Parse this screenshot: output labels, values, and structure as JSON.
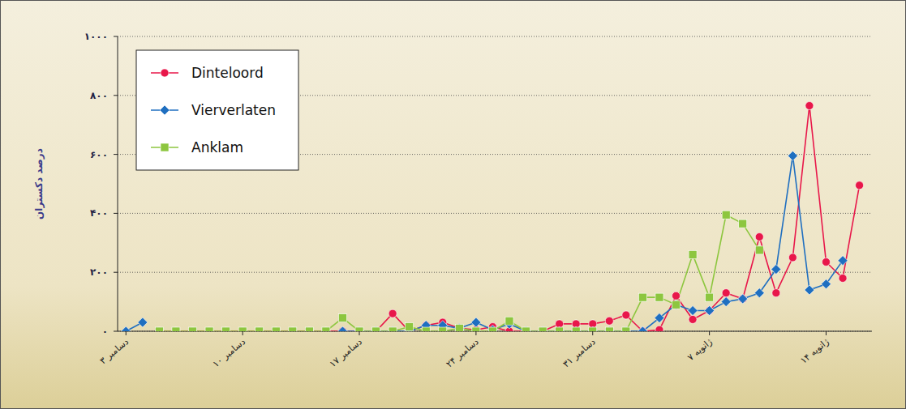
{
  "chart_data": {
    "type": "line",
    "y_label": "درصد دکستران",
    "x": [
      3,
      4,
      5,
      6,
      7,
      8,
      9,
      10,
      11,
      12,
      13,
      14,
      15,
      16,
      17,
      18,
      19,
      20,
      21,
      22,
      23,
      24,
      25,
      26,
      27,
      28,
      29,
      30,
      31,
      32,
      33,
      34,
      35,
      36,
      37,
      38,
      39,
      40,
      41,
      42,
      43,
      44,
      45,
      46,
      47
    ],
    "xlim": [
      2.5,
      47.75
    ],
    "xticks": [
      {
        "value": 3,
        "label": "۳ دسامبر"
      },
      {
        "value": 10,
        "label": "۱۰ دسامبر"
      },
      {
        "value": 17,
        "label": "۱۷ دسامبر"
      },
      {
        "value": 24,
        "label": "۲۴ دسامبر"
      },
      {
        "value": 31,
        "label": "۳۱ دسامبر"
      },
      {
        "value": 38,
        "label": "۷ ژانویه"
      },
      {
        "value": 45,
        "label": "۱۴ ژانویه"
      }
    ],
    "ylim": [
      0,
      1000
    ],
    "yticks": [
      {
        "value": 0,
        "label": "۰"
      },
      {
        "value": 200,
        "label": "۲۰۰"
      },
      {
        "value": 400,
        "label": "۴۰۰"
      },
      {
        "value": 600,
        "label": "۶۰۰"
      },
      {
        "value": 800,
        "label": "۸۰۰"
      },
      {
        "value": 1000,
        "label": "۱۰۰۰"
      }
    ],
    "grid": true,
    "legend": "top-left",
    "series": [
      {
        "name": "Dinteloord",
        "color": "#e8174a",
        "marker": "circle",
        "values": [
          null,
          null,
          0,
          0,
          0,
          0,
          0,
          0,
          0,
          0,
          0,
          0,
          0,
          0,
          0,
          0,
          60,
          0,
          20,
          30,
          10,
          5,
          15,
          0,
          0,
          0,
          25,
          25,
          25,
          35,
          55,
          0,
          5,
          120,
          40,
          70,
          130,
          110,
          320,
          130,
          250,
          765,
          235,
          180,
          495
        ]
      },
      {
        "name": "Vierverlaten",
        "color": "#1f6fc0",
        "marker": "diamond",
        "values": [
          0,
          30,
          null,
          null,
          null,
          null,
          null,
          null,
          null,
          null,
          null,
          null,
          null,
          0,
          0,
          0,
          0,
          0,
          20,
          20,
          10,
          30,
          5,
          25,
          0,
          0,
          0,
          0,
          0,
          0,
          0,
          0,
          45,
          90,
          70,
          70,
          100,
          110,
          130,
          210,
          595,
          140,
          160,
          240,
          null
        ]
      },
      {
        "name": "Anklam",
        "color": "#8dc63f",
        "marker": "square",
        "values": [
          null,
          null,
          0,
          0,
          0,
          0,
          0,
          0,
          0,
          0,
          0,
          0,
          0,
          45,
          0,
          0,
          0,
          15,
          0,
          0,
          10,
          0,
          0,
          35,
          0,
          0,
          0,
          0,
          0,
          0,
          0,
          115,
          115,
          90,
          260,
          115,
          395,
          365,
          275,
          null,
          null,
          null,
          null,
          null,
          null
        ]
      }
    ]
  }
}
